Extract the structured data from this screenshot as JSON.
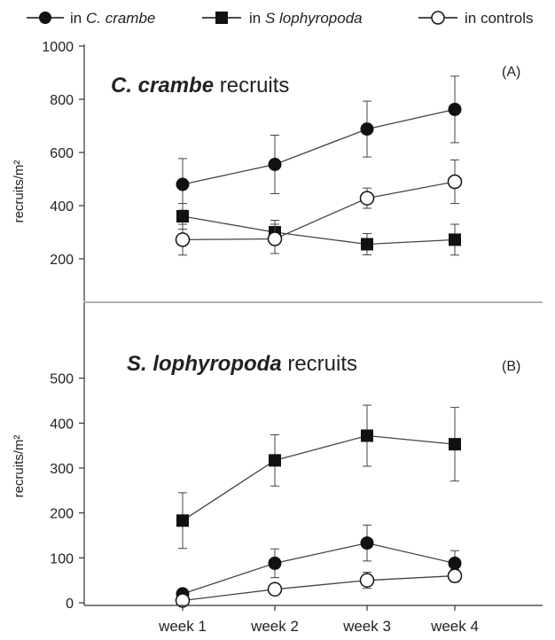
{
  "legend": [
    {
      "prefix": "in ",
      "name": "C. crambe",
      "marker": "filled-circle"
    },
    {
      "prefix": "in ",
      "name": "S  lophyropoda",
      "marker": "filled-square"
    },
    {
      "prefix": "in ",
      "name": "controls",
      "marker": "open-circle"
    }
  ],
  "colors": {
    "marks": "#111111",
    "axis": "#333333",
    "open_fill": "#ffffff"
  },
  "chart_data": [
    {
      "type": "line",
      "panel_label": "(A)",
      "title_bold": "C. crambe",
      "title_rest": " recruits",
      "ylabel": "recruits/m²",
      "ylim": [
        100,
        1000
      ],
      "yticks": [
        200,
        400,
        600,
        800,
        1000
      ],
      "categories": [
        "week 1",
        "week 2",
        "week 3",
        "week 4"
      ],
      "series": [
        {
          "name": "in C. crambe",
          "marker": "filled-circle",
          "values": [
            480,
            555,
            688,
            762
          ],
          "errors": [
            97,
            110,
            105,
            125
          ]
        },
        {
          "name": "in S  lophyropoda",
          "marker": "filled-square",
          "values": [
            360,
            300,
            255,
            272
          ],
          "errors": [
            48,
            45,
            40,
            58
          ]
        },
        {
          "name": "in controls",
          "marker": "open-circle",
          "values": [
            272,
            275,
            428,
            490
          ],
          "errors": [
            58,
            55,
            38,
            82
          ]
        }
      ]
    },
    {
      "type": "line",
      "panel_label": "(B)",
      "title_bold": "S. lophyropoda",
      "title_rest": " recruits",
      "ylabel": "recruits/m²",
      "ylim": [
        0,
        560
      ],
      "yticks": [
        0,
        100,
        200,
        300,
        400,
        500
      ],
      "categories": [
        "week 1",
        "week 2",
        "week 3",
        "week 4"
      ],
      "series": [
        {
          "name": "in C. crambe",
          "marker": "filled-circle",
          "values": [
            20,
            88,
            133,
            88
          ],
          "errors": [
            0,
            32,
            40,
            28
          ]
        },
        {
          "name": "in S  lophyropoda",
          "marker": "filled-square",
          "values": [
            183,
            317,
            372,
            353
          ],
          "errors": [
            62,
            57,
            68,
            82
          ]
        },
        {
          "name": "in controls",
          "marker": "open-circle",
          "values": [
            5,
            30,
            50,
            60
          ],
          "errors": [
            0,
            0,
            18,
            14
          ]
        }
      ]
    }
  ]
}
